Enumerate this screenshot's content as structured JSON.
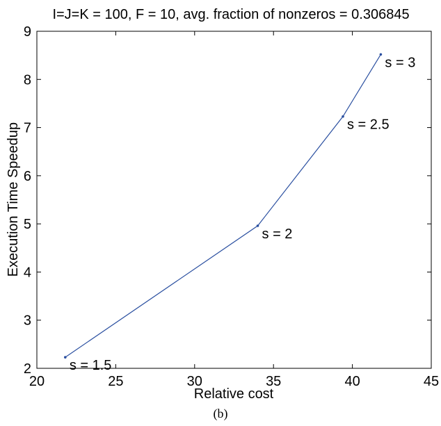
{
  "chart_data": {
    "type": "line",
    "title": "I=J=K = 100, F = 10, avg. fraction of nonzeros = 0.306845",
    "xlabel": "Relative cost",
    "ylabel": "Execution Time Speedup",
    "xlim": [
      20,
      45
    ],
    "ylim": [
      2,
      9
    ],
    "xticks": [
      "20",
      "25",
      "30",
      "35",
      "40",
      "45"
    ],
    "yticks": [
      "2",
      "3",
      "4",
      "5",
      "6",
      "7",
      "8",
      "9"
    ],
    "grid": false,
    "series": [
      {
        "color": "#2a4fa0",
        "points": [
          {
            "x": 21.8,
            "y": 2.23,
            "label": "s = 1.5"
          },
          {
            "x": 34.0,
            "y": 4.96,
            "label": "s = 2"
          },
          {
            "x": 39.4,
            "y": 7.23,
            "label": "s = 2.5"
          },
          {
            "x": 41.8,
            "y": 8.52,
            "label": "s = 3"
          }
        ]
      }
    ]
  },
  "caption": "(b)"
}
